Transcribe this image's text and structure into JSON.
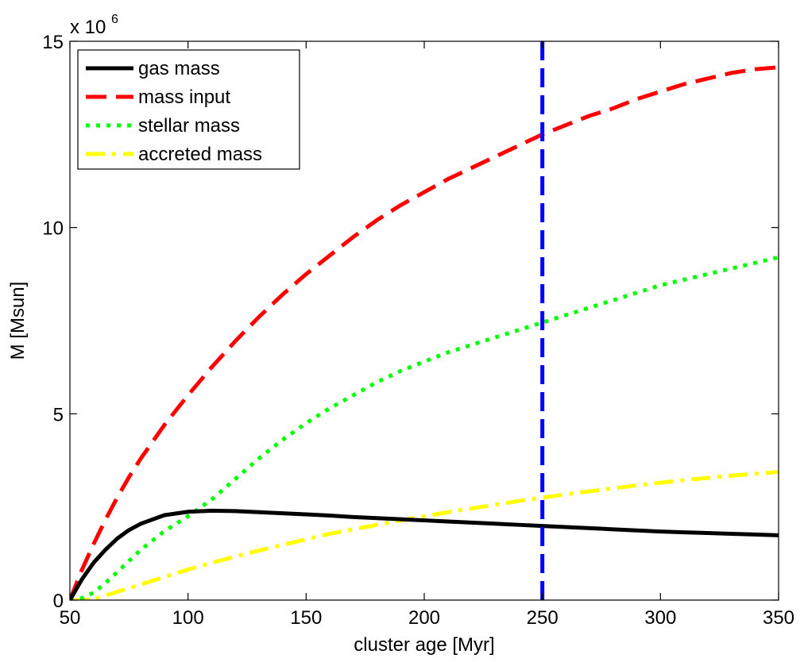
{
  "chart_data": {
    "type": "line",
    "title": "",
    "xlabel": "cluster age [Myr]",
    "ylabel": "M [Msun]",
    "y_multiplier_base": "x 10",
    "y_multiplier_exponent": "6",
    "xlim": [
      50,
      350
    ],
    "ylim": [
      0,
      15
    ],
    "xticks": [
      50,
      100,
      150,
      200,
      250,
      300,
      350
    ],
    "xtick_labels": [
      "50",
      "100",
      "150",
      "200",
      "250",
      "300",
      "350"
    ],
    "yticks": [
      0,
      5,
      10,
      15
    ],
    "ytick_labels": [
      "0",
      "5",
      "10",
      "15"
    ],
    "grid": false,
    "legend_position": "top-left",
    "x": [
      50,
      55,
      60,
      65,
      70,
      75,
      80,
      90,
      100,
      110,
      120,
      130,
      140,
      150,
      160,
      170,
      180,
      190,
      200,
      210,
      220,
      230,
      240,
      250,
      260,
      270,
      280,
      290,
      300,
      310,
      320,
      330,
      340,
      350
    ],
    "series": [
      {
        "name": "gas mass",
        "color": "#000000",
        "dash": "solid",
        "values": [
          0.0,
          0.55,
          1.0,
          1.35,
          1.65,
          1.88,
          2.05,
          2.28,
          2.37,
          2.4,
          2.39,
          2.36,
          2.33,
          2.3,
          2.27,
          2.23,
          2.2,
          2.17,
          2.14,
          2.11,
          2.08,
          2.05,
          2.02,
          1.99,
          1.96,
          1.93,
          1.9,
          1.87,
          1.84,
          1.82,
          1.8,
          1.78,
          1.76,
          1.74
        ]
      },
      {
        "name": "mass input",
        "color": "#ff0000",
        "dash": "dashed",
        "values": [
          0.0,
          0.8,
          1.5,
          2.15,
          2.75,
          3.3,
          3.8,
          4.7,
          5.5,
          6.25,
          6.95,
          7.6,
          8.2,
          8.75,
          9.25,
          9.75,
          10.2,
          10.6,
          10.95,
          11.3,
          11.6,
          11.9,
          12.2,
          12.5,
          12.75,
          13.0,
          13.2,
          13.45,
          13.65,
          13.85,
          14.0,
          14.15,
          14.25,
          14.3
        ]
      },
      {
        "name": "stellar mass",
        "color": "#00ff00",
        "dash": "dotted",
        "values": [
          0.0,
          0.05,
          0.2,
          0.45,
          0.75,
          1.05,
          1.35,
          1.85,
          2.25,
          2.7,
          3.25,
          3.8,
          4.3,
          4.75,
          5.15,
          5.5,
          5.85,
          6.15,
          6.4,
          6.65,
          6.85,
          7.05,
          7.25,
          7.45,
          7.65,
          7.85,
          8.05,
          8.25,
          8.45,
          8.6,
          8.75,
          8.9,
          9.05,
          9.2
        ]
      },
      {
        "name": "accreted mass",
        "color": "#ffff00",
        "dash": "dashdot",
        "values": [
          0.0,
          0.0,
          0.02,
          0.12,
          0.22,
          0.32,
          0.42,
          0.62,
          0.82,
          1.0,
          1.17,
          1.33,
          1.48,
          1.63,
          1.78,
          1.9,
          2.02,
          2.14,
          2.25,
          2.36,
          2.46,
          2.56,
          2.66,
          2.75,
          2.84,
          2.92,
          3.0,
          3.08,
          3.15,
          3.22,
          3.28,
          3.34,
          3.39,
          3.44
        ]
      }
    ],
    "vertical_line": {
      "x": 250,
      "color": "#0000ff",
      "dash": "dashed"
    }
  }
}
